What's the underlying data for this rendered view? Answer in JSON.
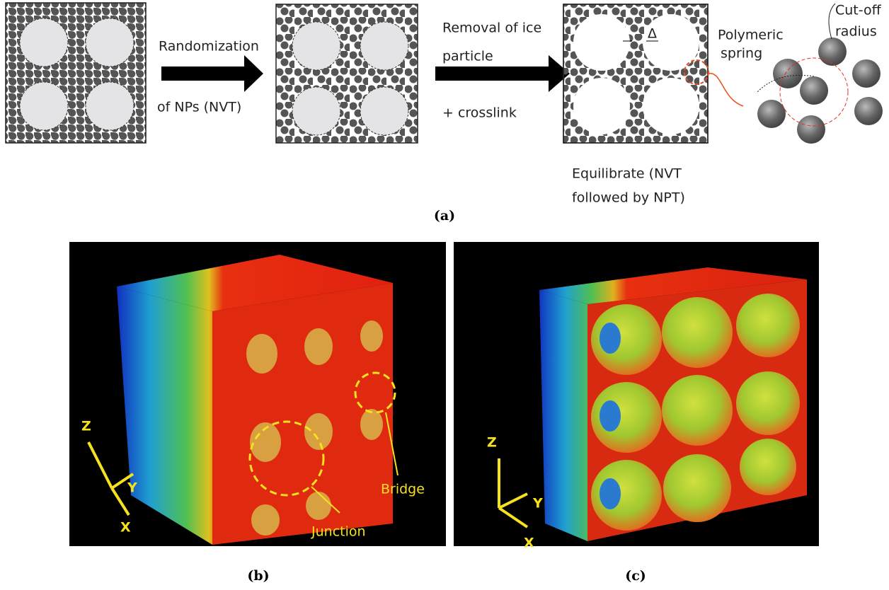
{
  "panel_a": {
    "step1": [
      "Randomization",
      "of NPs (NVT)"
    ],
    "step2": [
      "Removal of ice",
      "particle",
      "+ crosslink"
    ],
    "delta": "Δ",
    "spring_label": [
      "Polymeric",
      "spring"
    ],
    "cutoff_label": [
      "Cut-off",
      "radius"
    ],
    "step3": [
      "Equilibrate (NVT",
      "followed by NPT)"
    ],
    "caption": "(a)"
  },
  "panel_b": {
    "axes": {
      "z": "Z",
      "y": "Y",
      "x": "X"
    },
    "annotations": [
      "Bridge",
      "Junction"
    ],
    "caption": "(b)"
  },
  "panel_c": {
    "axes": {
      "z": "Z",
      "y": "Y",
      "x": "X"
    },
    "caption": "(c)"
  }
}
